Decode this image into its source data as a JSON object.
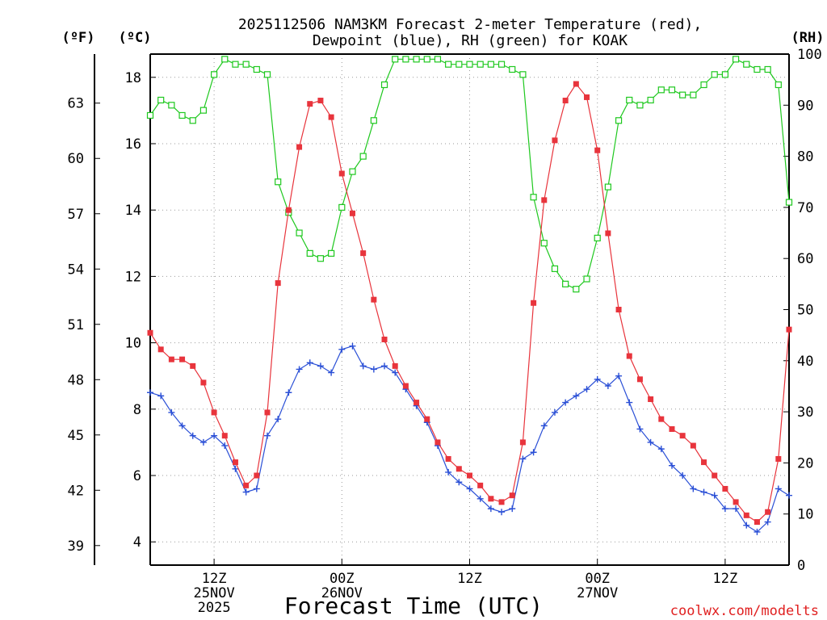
{
  "chart_data": {
    "type": "line",
    "title_line1": "2025112506 NAM3KM Forecast 2-meter Temperature (red),",
    "title_line2": "Dewpoint (blue), RH (green) for KOAK",
    "xlabel": "Forecast Time (UTC)",
    "credit": "coolwx.com/modelts",
    "units": {
      "fahrenheit": "(ºF)",
      "celsius": "(ºC)",
      "rh": "(RH)"
    },
    "x_start_hour": 6,
    "x_end_hour": 66,
    "x_ticks": [
      {
        "hour": 12,
        "line1": "12Z",
        "line2": "25NOV",
        "line3": "2025"
      },
      {
        "hour": 24,
        "line1": "00Z",
        "line2": "26NOV",
        "line3": ""
      },
      {
        "hour": 36,
        "line1": "12Z",
        "line2": "",
        "line3": ""
      },
      {
        "hour": 48,
        "line1": "00Z",
        "line2": "27NOV",
        "line3": ""
      },
      {
        "hour": 60,
        "line1": "12Z",
        "line2": "",
        "line3": ""
      }
    ],
    "celsius_axis": {
      "range": [
        3.3,
        18.7
      ],
      "ticks": [
        "4",
        "6",
        "8",
        "10",
        "12",
        "14",
        "16",
        "18"
      ]
    },
    "fahrenheit_axis": {
      "ticks": [
        "39",
        "42",
        "45",
        "48",
        "51",
        "54",
        "57",
        "60",
        "63"
      ]
    },
    "rh_axis": {
      "range": [
        0,
        100
      ],
      "ticks": [
        "0",
        "10",
        "20",
        "30",
        "40",
        "50",
        "60",
        "70",
        "80",
        "90",
        "100"
      ]
    },
    "series": [
      {
        "name": "Temperature",
        "unit": "C",
        "color": "#e8343c",
        "marker": "filled-square",
        "values": [
          10.3,
          9.8,
          9.5,
          9.5,
          9.3,
          8.8,
          7.9,
          7.2,
          6.4,
          5.7,
          6.0,
          7.9,
          11.8,
          14.0,
          15.9,
          17.2,
          17.3,
          16.8,
          15.1,
          13.9,
          12.7,
          11.3,
          10.1,
          9.3,
          8.7,
          8.2,
          7.7,
          7.0,
          6.5,
          6.2,
          6.0,
          5.7,
          5.3,
          5.2,
          5.4,
          7.0,
          11.2,
          14.3,
          16.1,
          17.3,
          17.8,
          17.4,
          15.8,
          13.3,
          11.0,
          9.6,
          8.9,
          8.3,
          7.7,
          7.4,
          7.2,
          6.9,
          6.4,
          6.0,
          5.6,
          5.2,
          4.8,
          4.6,
          4.9,
          6.5,
          10.4
        ],
        "rh": [
          88,
          91,
          90,
          88,
          87,
          89,
          96,
          99,
          98,
          98,
          97,
          96,
          75,
          69,
          65,
          61,
          60,
          61,
          70,
          77,
          80,
          87,
          94,
          99,
          99,
          99,
          99,
          99,
          98,
          98,
          98,
          98,
          98,
          98,
          97,
          96,
          72,
          63,
          58,
          55,
          54,
          56,
          64,
          74,
          87,
          91,
          90,
          91,
          93,
          93,
          92,
          92,
          94,
          96,
          96,
          99,
          98,
          97,
          97,
          94,
          71
        ]
      },
      {
        "name": "Dewpoint",
        "unit": "C",
        "color": "#2a4fd6",
        "marker": "plus",
        "values": [
          8.5,
          8.4,
          7.9,
          7.5,
          7.2,
          7.0,
          7.2,
          6.9,
          6.2,
          5.5,
          5.6,
          7.2,
          7.7,
          8.5,
          9.2,
          9.4,
          9.3,
          9.1,
          9.8,
          9.9,
          9.3,
          9.2,
          9.3,
          9.1,
          8.6,
          8.1,
          7.6,
          6.9,
          6.1,
          5.8,
          5.6,
          5.3,
          5.0,
          4.9,
          5.0,
          6.5,
          6.7,
          7.5,
          7.9,
          8.2,
          8.4,
          8.6,
          8.9,
          8.7,
          9.0,
          8.2,
          7.4,
          7.0,
          6.8,
          6.3,
          6.0,
          5.6,
          5.5,
          5.4,
          5.0,
          5.0,
          4.5,
          4.3,
          4.6,
          5.6,
          5.4
        ]
      },
      {
        "name": "RH",
        "unit": "%",
        "color": "#1ec81e",
        "marker": "open-square",
        "values": [
          88,
          91,
          90,
          88,
          87,
          89,
          96,
          99,
          98,
          98,
          97,
          96,
          75,
          69,
          65,
          61,
          60,
          61,
          70,
          77,
          80,
          87,
          94,
          99,
          99,
          99,
          99,
          99,
          98,
          98,
          98,
          98,
          98,
          98,
          97,
          96,
          72,
          63,
          58,
          55,
          54,
          56,
          64,
          74,
          87,
          91,
          90,
          91,
          93,
          93,
          92,
          92,
          94,
          96,
          96,
          99,
          98,
          97,
          97,
          94,
          71
        ]
      }
    ]
  }
}
